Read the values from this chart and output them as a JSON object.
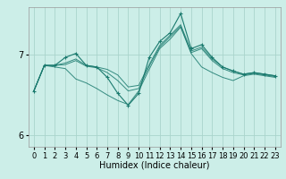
{
  "title": "",
  "xlabel": "Humidex (Indice chaleur)",
  "ylabel": "",
  "bg_color": "#cceee8",
  "grid_color": "#aad4cc",
  "line_color": "#1a7a6e",
  "xlim": [
    -0.5,
    23.5
  ],
  "ylim": [
    5.85,
    7.6
  ],
  "yticks": [
    6,
    7
  ],
  "xticks": [
    0,
    1,
    2,
    3,
    4,
    5,
    6,
    7,
    8,
    9,
    10,
    11,
    12,
    13,
    14,
    15,
    16,
    17,
    18,
    19,
    20,
    21,
    22,
    23
  ],
  "series": [
    [
      6.55,
      6.87,
      6.87,
      6.9,
      6.95,
      6.87,
      6.85,
      6.82,
      6.75,
      6.6,
      6.62,
      6.88,
      7.12,
      7.25,
      7.38,
      7.05,
      7.1,
      6.95,
      6.85,
      6.8,
      6.76,
      6.78,
      6.76,
      6.74
    ],
    [
      6.55,
      6.87,
      6.85,
      6.83,
      6.7,
      6.65,
      6.58,
      6.5,
      6.43,
      6.38,
      6.55,
      6.82,
      7.08,
      7.2,
      7.35,
      7.02,
      6.85,
      6.78,
      6.72,
      6.68,
      6.74,
      6.76,
      6.74,
      6.72
    ],
    [
      6.55,
      6.87,
      6.87,
      6.88,
      6.93,
      6.86,
      6.84,
      6.78,
      6.68,
      6.55,
      6.58,
      6.86,
      7.1,
      7.23,
      7.36,
      7.03,
      7.08,
      6.93,
      6.83,
      6.78,
      6.75,
      6.77,
      6.75,
      6.73
    ]
  ],
  "main_series_y": [
    6.55,
    6.87,
    6.87,
    6.97,
    7.02,
    6.87,
    6.85,
    6.72,
    6.52,
    6.37,
    6.52,
    6.97,
    7.17,
    7.28,
    7.52,
    7.08,
    7.13,
    6.97,
    6.85,
    6.8,
    6.76,
    6.78,
    6.76,
    6.74
  ],
  "xtick_fontsize": 6,
  "ytick_fontsize": 7,
  "xlabel_fontsize": 7
}
